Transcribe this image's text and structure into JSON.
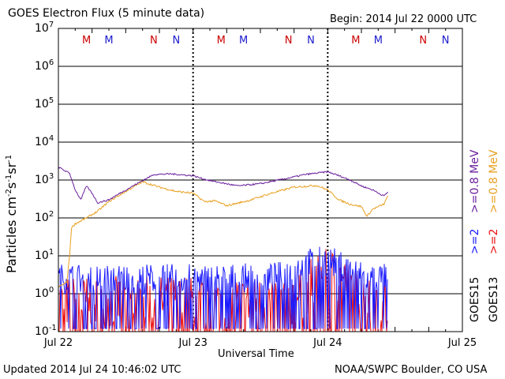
{
  "header": {
    "title": "GOES Electron Flux (5 minute data)",
    "begin": "Begin: 2014 Jul 22 0000 UTC"
  },
  "footer": {
    "updated": "Updated 2014 Jul 24 10:46:02 UTC",
    "credit": "NOAA/SWPC Boulder, CO USA"
  },
  "chart_data": {
    "type": "line",
    "title": "GOES Electron Flux (5 minute data)",
    "xlabel": "Universal Time",
    "ylabel": "Particles cm⁻²s⁻¹sr⁻¹",
    "yscale": "log",
    "ylim": [
      0.1,
      10000000
    ],
    "xlim": [
      "2014-07-22 00:00",
      "2014-07-25 00:00"
    ],
    "x_ticks": [
      "Jul 22",
      "Jul 23",
      "Jul 24",
      "Jul 25"
    ],
    "y_ticks": [
      {
        "base": "10",
        "exp": "-1"
      },
      {
        "base": "10",
        "exp": "0"
      },
      {
        "base": "10",
        "exp": "1"
      },
      {
        "base": "10",
        "exp": "2"
      },
      {
        "base": "10",
        "exp": "3"
      },
      {
        "base": "10",
        "exp": "4"
      },
      {
        "base": "10",
        "exp": "5"
      },
      {
        "base": "10",
        "exp": "6"
      },
      {
        "base": "10",
        "exp": "7"
      }
    ],
    "grid": true,
    "threshold": {
      "value": 1000,
      "style": "dashed"
    },
    "legend": {
      "position": "right",
      "satellites": [
        {
          "label": "GOES15",
          "channels": [
            {
              "label": ">=2",
              "color": "#1a1aff"
            },
            {
              "label": ">=0.8 MeV",
              "color": "#6a1f9c"
            }
          ]
        },
        {
          "label": "GOES13",
          "channels": [
            {
              "label": ">=2",
              "color": "#ee1111"
            },
            {
              "label": ">=0.8 MeV",
              "color": "#e8a020"
            }
          ]
        }
      ]
    },
    "local_time_markers": [
      {
        "label": "M",
        "time": "2014-07-22 05:00",
        "color": "#cc0000"
      },
      {
        "label": "M",
        "time": "2014-07-22 09:00",
        "color": "#1a1acc"
      },
      {
        "label": "N",
        "time": "2014-07-22 17:00",
        "color": "#cc0000"
      },
      {
        "label": "N",
        "time": "2014-07-22 21:00",
        "color": "#1a1acc"
      },
      {
        "label": "M",
        "time": "2014-07-23 05:00",
        "color": "#cc0000"
      },
      {
        "label": "M",
        "time": "2014-07-23 09:00",
        "color": "#1a1acc"
      },
      {
        "label": "N",
        "time": "2014-07-23 17:00",
        "color": "#cc0000"
      },
      {
        "label": "N",
        "time": "2014-07-23 21:00",
        "color": "#1a1acc"
      },
      {
        "label": "M",
        "time": "2014-07-24 05:00",
        "color": "#cc0000"
      },
      {
        "label": "M",
        "time": "2014-07-24 09:00",
        "color": "#1a1acc"
      },
      {
        "label": "N",
        "time": "2014-07-24 17:00",
        "color": "#cc0000"
      },
      {
        "label": "N",
        "time": "2014-07-24 21:00",
        "color": "#1a1acc"
      }
    ],
    "series": [
      {
        "name": "GOES15 >=0.8 MeV",
        "color": "#6a1f9c",
        "x": [
          "2014-07-22 00:00",
          "2014-07-22 02:00",
          "2014-07-22 03:00",
          "2014-07-22 04:00",
          "2014-07-22 05:00",
          "2014-07-22 06:00",
          "2014-07-22 07:00",
          "2014-07-22 09:00",
          "2014-07-22 11:00",
          "2014-07-22 14:00",
          "2014-07-22 17:00",
          "2014-07-22 20:00",
          "2014-07-23 00:00",
          "2014-07-23 02:00",
          "2014-07-23 04:00",
          "2014-07-23 08:00",
          "2014-07-23 12:00",
          "2014-07-23 16:00",
          "2014-07-23 20:00",
          "2014-07-24 00:00",
          "2014-07-24 02:00",
          "2014-07-24 04:00",
          "2014-07-24 06:00",
          "2014-07-24 08:00",
          "2014-07-24 10:00",
          "2014-07-24 10:45"
        ],
        "y": [
          2200,
          1500,
          550,
          300,
          700,
          450,
          250,
          300,
          450,
          800,
          1400,
          1450,
          1300,
          1050,
          900,
          700,
          800,
          1050,
          1400,
          1650,
          1300,
          1000,
          700,
          550,
          380,
          480
        ]
      },
      {
        "name": "GOES13 >=0.8 MeV",
        "color": "#e8a020",
        "x": [
          "2014-07-22 00:00",
          "2014-07-22 01:30",
          "2014-07-22 02:00",
          "2014-07-22 02:20",
          "2014-07-22 03:00",
          "2014-07-22 05:00",
          "2014-07-22 07:00",
          "2014-07-22 09:00",
          "2014-07-22 12:00",
          "2014-07-22 15:00",
          "2014-07-22 18:00",
          "2014-07-22 21:00",
          "2014-07-23 00:00",
          "2014-07-23 02:00",
          "2014-07-23 04:00",
          "2014-07-23 06:00",
          "2014-07-23 10:00",
          "2014-07-23 14:00",
          "2014-07-23 18:00",
          "2014-07-23 22:00",
          "2014-07-24 00:00",
          "2014-07-24 02:00",
          "2014-07-24 04:00",
          "2014-07-24 06:00",
          "2014-07-24 07:00",
          "2014-07-24 08:00",
          "2014-07-24 10:00",
          "2014-07-24 10:45"
        ],
        "y": [
          1.5,
          2,
          10,
          55,
          70,
          100,
          150,
          270,
          500,
          900,
          650,
          500,
          450,
          270,
          280,
          210,
          290,
          450,
          650,
          720,
          550,
          300,
          230,
          200,
          110,
          170,
          230,
          380
        ]
      },
      {
        "name": "GOES15 >=2",
        "color": "#1a1aff",
        "description": "noisy, oscillating roughly between 0.2 and 8; max ~10 near Jul 23 20:00; ends at Jul 24 10:45"
      },
      {
        "name": "GOES13 >=2",
        "color": "#ee1111",
        "description": "noisy, oscillating roughly between 0.1 and 2; max ~4 near Jul 23 20:00; ends at Jul 24 10:45"
      }
    ]
  }
}
